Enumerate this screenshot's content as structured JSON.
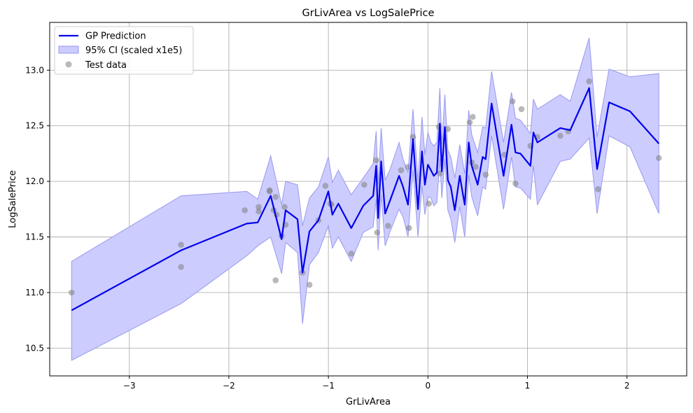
{
  "chart_data": {
    "type": "line",
    "title": "GrLivArea vs LogSalePrice",
    "xlabel": "GrLivArea",
    "ylabel": "LogSalePrice",
    "xlim": [
      -3.8,
      2.6
    ],
    "ylim": [
      10.25,
      13.43
    ],
    "xticks": [
      -3,
      -2,
      -1,
      0,
      1,
      2
    ],
    "yticks": [
      10.5,
      11.0,
      11.5,
      12.0,
      12.5,
      13.0
    ],
    "grid": true,
    "legend_position": "top-left",
    "legend": {
      "prediction_label": "GP Prediction",
      "ci_label": "95% CI (scaled x1e5)",
      "test_label": "Test data"
    },
    "colors": {
      "prediction": "#0000ee",
      "ci_fill": "#ccccff",
      "ci_edge": "#9999ee",
      "test_points": "#808080",
      "grid": "#b0b0b0"
    },
    "prediction": {
      "x": [
        -3.58,
        -2.48,
        -1.82,
        -1.71,
        -1.58,
        -1.47,
        -1.43,
        -1.31,
        -1.26,
        -1.19,
        -1.1,
        -1.0,
        -0.96,
        -0.9,
        -0.77,
        -0.65,
        -0.55,
        -0.52,
        -0.5,
        -0.47,
        -0.43,
        -0.38,
        -0.29,
        -0.25,
        -0.2,
        -0.15,
        -0.1,
        -0.06,
        -0.03,
        0.0,
        0.03,
        0.06,
        0.09,
        0.12,
        0.14,
        0.17,
        0.2,
        0.23,
        0.27,
        0.32,
        0.37,
        0.41,
        0.44,
        0.5,
        0.55,
        0.58,
        0.64,
        0.76,
        0.84,
        0.88,
        0.93,
        1.03,
        1.06,
        1.1,
        1.33,
        1.43,
        1.62,
        1.7,
        1.82,
        2.03,
        2.32
      ],
      "y": [
        10.84,
        11.38,
        11.62,
        11.63,
        11.87,
        11.48,
        11.74,
        11.66,
        11.18,
        11.55,
        11.65,
        11.91,
        11.7,
        11.8,
        11.58,
        11.78,
        11.87,
        12.14,
        11.67,
        12.18,
        11.71,
        11.83,
        12.05,
        11.95,
        11.79,
        12.38,
        11.75,
        12.27,
        11.97,
        12.15,
        12.1,
        12.05,
        12.08,
        12.52,
        12.09,
        12.49,
        12.01,
        11.95,
        11.74,
        12.05,
        11.79,
        12.35,
        12.14,
        11.97,
        12.22,
        12.2,
        12.7,
        12.05,
        12.51,
        12.26,
        12.25,
        12.14,
        12.44,
        12.35,
        12.48,
        12.46,
        12.84,
        12.11,
        12.71,
        12.63,
        12.34
      ]
    },
    "ci_upper": [
      11.28,
      11.87,
      11.91,
      11.84,
      12.23,
      11.79,
      12.0,
      11.97,
      11.6,
      11.85,
      11.95,
      12.22,
      11.99,
      12.1,
      11.88,
      12.03,
      12.16,
      12.45,
      11.97,
      12.48,
      12.01,
      12.11,
      12.35,
      12.2,
      12.08,
      12.65,
      12.0,
      12.58,
      12.24,
      12.44,
      12.35,
      12.32,
      12.35,
      12.84,
      12.33,
      12.78,
      12.28,
      12.22,
      12.03,
      12.33,
      12.07,
      12.64,
      12.42,
      12.26,
      12.49,
      12.48,
      12.99,
      12.35,
      12.8,
      12.57,
      12.55,
      12.43,
      12.74,
      12.65,
      12.78,
      12.72,
      13.29,
      12.4,
      13.01,
      12.94,
      12.97
    ],
    "ci_lower": [
      10.39,
      10.9,
      11.33,
      11.42,
      11.5,
      11.17,
      11.45,
      11.36,
      10.72,
      11.25,
      11.36,
      11.6,
      11.4,
      11.5,
      11.28,
      11.54,
      11.59,
      11.84,
      11.38,
      11.88,
      11.42,
      11.55,
      11.75,
      11.68,
      11.5,
      12.1,
      11.5,
      11.96,
      11.7,
      11.86,
      11.85,
      11.78,
      11.81,
      12.2,
      11.85,
      12.2,
      11.74,
      11.66,
      11.45,
      11.77,
      11.5,
      12.06,
      11.86,
      11.69,
      11.95,
      11.93,
      12.41,
      11.75,
      12.22,
      11.95,
      11.94,
      11.84,
      12.14,
      11.79,
      12.18,
      12.2,
      12.39,
      11.71,
      12.41,
      12.31,
      11.71
    ],
    "test_data": {
      "x": [
        -3.58,
        -2.48,
        -2.48,
        -1.84,
        -1.7,
        -1.7,
        -1.59,
        -1.59,
        -1.55,
        -1.53,
        -1.53,
        -1.52,
        -1.47,
        -1.44,
        -1.43,
        -1.26,
        -1.19,
        -1.1,
        -1.03,
        -0.98,
        -0.97,
        -0.77,
        -0.64,
        -0.52,
        -0.51,
        -0.4,
        -0.27,
        -0.2,
        -0.19,
        -0.15,
        0.01,
        0.11,
        0.12,
        0.2,
        0.42,
        0.44,
        0.45,
        0.48,
        0.58,
        0.77,
        0.85,
        0.88,
        0.94,
        1.03,
        1.1,
        1.33,
        1.41,
        1.62,
        1.71,
        2.32
      ],
      "y": [
        11.0,
        11.43,
        11.23,
        11.74,
        11.77,
        11.73,
        11.92,
        11.91,
        11.74,
        11.86,
        11.11,
        11.7,
        11.51,
        11.77,
        11.61,
        11.18,
        11.07,
        11.65,
        11.96,
        11.8,
        11.79,
        11.35,
        11.97,
        12.19,
        11.54,
        11.6,
        12.1,
        12.13,
        11.58,
        12.4,
        11.8,
        12.49,
        12.07,
        12.47,
        12.53,
        12.17,
        12.58,
        12.13,
        12.06,
        12.24,
        12.72,
        11.98,
        12.65,
        12.32,
        12.4,
        12.41,
        12.45,
        12.9,
        11.93,
        12.21
      ]
    }
  }
}
